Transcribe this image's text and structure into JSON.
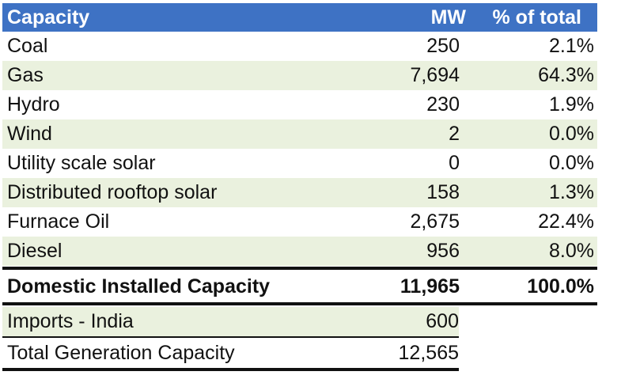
{
  "header": {
    "col1": "Capacity",
    "col2": "MW",
    "col3": "% of total"
  },
  "rows": [
    {
      "label": "Coal",
      "mw": "250",
      "pct": "2.1%"
    },
    {
      "label": "Gas",
      "mw": "7,694",
      "pct": "64.3%"
    },
    {
      "label": "Hydro",
      "mw": "230",
      "pct": "1.9%"
    },
    {
      "label": "Wind",
      "mw": "2",
      "pct": "0.0%"
    },
    {
      "label": "Utility scale solar",
      "mw": "0",
      "pct": "0.0%"
    },
    {
      "label": "Distributed rooftop solar",
      "mw": "158",
      "pct": "1.3%"
    },
    {
      "label": "Furnace Oil",
      "mw": "2,675",
      "pct": "22.4%"
    },
    {
      "label": "Diesel",
      "mw": "956",
      "pct": "8.0%"
    }
  ],
  "domestic_total": {
    "label": "Domestic Installed Capacity",
    "mw": "11,965",
    "pct": "100.0%"
  },
  "imports": {
    "label": "Imports - India",
    "mw": "600"
  },
  "total_generation": {
    "label": "Total Generation Capacity",
    "mw": "12,565"
  }
}
